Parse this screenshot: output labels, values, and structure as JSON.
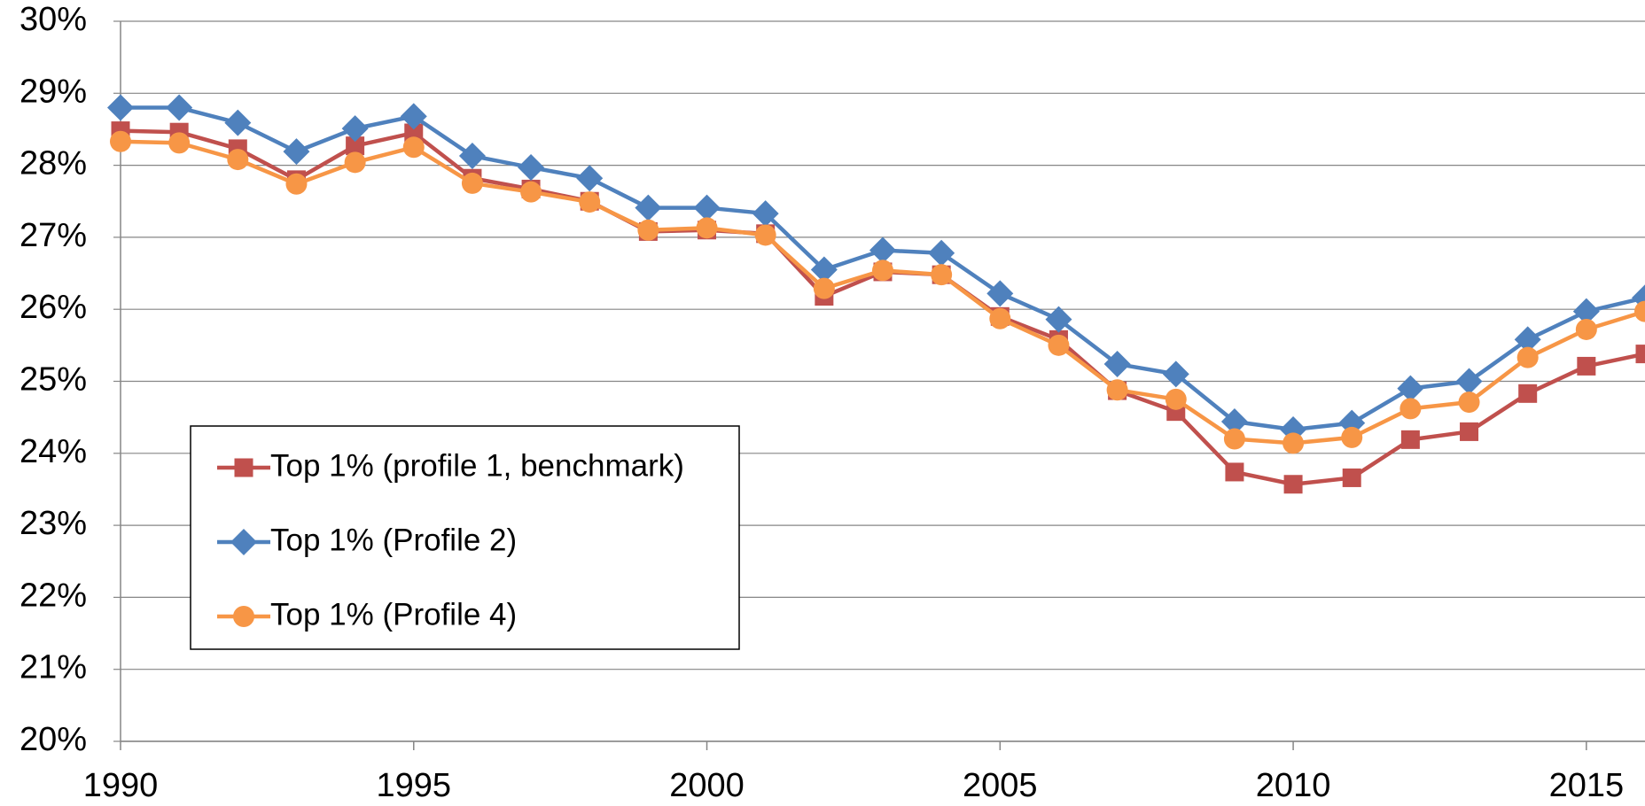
{
  "chart_data": {
    "type": "line",
    "x": [
      1990,
      1991,
      1992,
      1993,
      1994,
      1995,
      1996,
      1997,
      1998,
      1999,
      2000,
      2001,
      2002,
      2003,
      2004,
      2005,
      2006,
      2007,
      2008,
      2009,
      2010,
      2011,
      2012,
      2013,
      2014,
      2015,
      2016
    ],
    "series": [
      {
        "name": "Top 1% (profile 1, benchmark)",
        "color": "#c0504d",
        "marker": "square",
        "values": [
          28.48,
          28.46,
          28.23,
          27.8,
          28.27,
          28.45,
          27.82,
          27.67,
          27.5,
          27.08,
          27.1,
          27.05,
          26.18,
          26.52,
          26.48,
          25.9,
          25.58,
          24.87,
          24.58,
          23.74,
          23.57,
          23.66,
          24.19,
          24.3,
          24.83,
          25.21,
          25.38
        ]
      },
      {
        "name": "Top 1% (Profile 2)",
        "color": "#4f81bd",
        "marker": "diamond",
        "values": [
          28.8,
          28.8,
          28.59,
          28.19,
          28.51,
          28.68,
          28.13,
          27.97,
          27.82,
          27.41,
          27.41,
          27.33,
          26.55,
          26.82,
          26.78,
          26.22,
          25.86,
          25.24,
          25.1,
          24.44,
          24.33,
          24.42,
          24.9,
          25.0,
          25.58,
          25.97,
          26.16
        ]
      },
      {
        "name": "Top 1% (Profile 4)",
        "color": "#f79646",
        "marker": "circle",
        "values": [
          28.33,
          28.31,
          28.08,
          27.74,
          28.04,
          28.25,
          27.75,
          27.63,
          27.49,
          27.1,
          27.13,
          27.03,
          26.29,
          26.54,
          26.48,
          25.87,
          25.5,
          24.88,
          24.75,
          24.2,
          24.14,
          24.22,
          24.62,
          24.71,
          25.33,
          25.72,
          25.97
        ]
      }
    ],
    "xlim": [
      1990,
      2016
    ],
    "xticks": [
      1990,
      1995,
      2000,
      2005,
      2010,
      2015
    ],
    "ylim": [
      20,
      30
    ],
    "yticks": [
      {
        "value": 20,
        "label": "20%"
      },
      {
        "value": 21,
        "label": "21%"
      },
      {
        "value": 22,
        "label": "22%"
      },
      {
        "value": 23,
        "label": "23%"
      },
      {
        "value": 24,
        "label": "24%"
      },
      {
        "value": 25,
        "label": "25%"
      },
      {
        "value": 26,
        "label": "26%"
      },
      {
        "value": 27,
        "label": "27%"
      },
      {
        "value": 28,
        "label": "28%"
      },
      {
        "value": 29,
        "label": "29%"
      },
      {
        "value": 30,
        "label": "30%"
      }
    ],
    "grid": true,
    "legend": "lower left"
  }
}
